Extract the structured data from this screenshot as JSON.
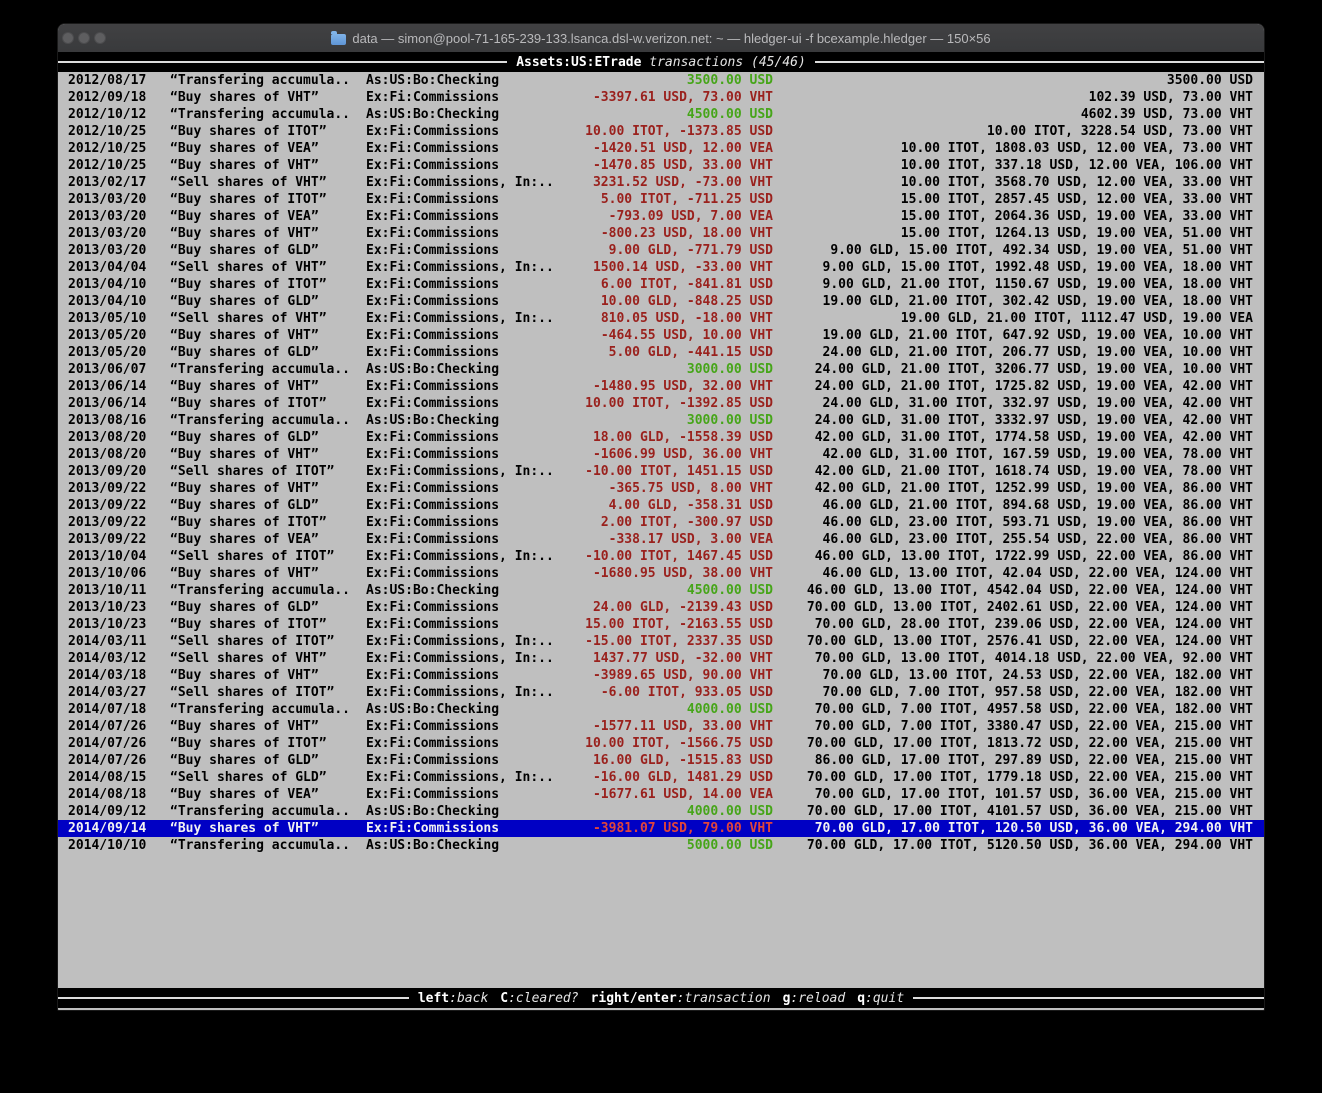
{
  "window": {
    "title": "data — simon@pool-71-165-239-133.lsanca.dsl-w.verizon.net: ~ — hledger-ui -f bcexample.hledger — 150×56",
    "traffic_lights": [
      "close",
      "minimize",
      "zoom"
    ]
  },
  "colors": {
    "terminal_bg": "#bfbfbf",
    "bar_bg": "#000000",
    "text": "#000000",
    "amount_negative": "#9a211d",
    "amount_positive": "#46a519",
    "selected_bg": "#0000c4",
    "selected_text": "#f2f2f2"
  },
  "topbar": {
    "account": "Assets:US:ETrade",
    "mode": "transactions (45/46)"
  },
  "bottombar": {
    "hints": [
      {
        "key": "left",
        "desc": ":back"
      },
      {
        "key": "C",
        "desc": ":cleared?"
      },
      {
        "key": "right/enter",
        "desc": ":transaction"
      },
      {
        "key": "g",
        "desc": ":reload"
      },
      {
        "key": "q",
        "desc": ":quit"
      }
    ]
  },
  "table": {
    "rows": [
      {
        "date": "2012/08/17",
        "desc": "“Transfering accumula..",
        "acct": "As:US:Bo:Checking",
        "change": "3500.00 USD",
        "change_color": "green",
        "balance": "3500.00 USD",
        "selected": false
      },
      {
        "date": "2012/09/18",
        "desc": "“Buy shares of VHT”",
        "acct": "Ex:Fi:Commissions",
        "change": "-3397.61 USD, 73.00 VHT",
        "change_color": "red",
        "balance": "102.39 USD, 73.00 VHT",
        "selected": false
      },
      {
        "date": "2012/10/12",
        "desc": "“Transfering accumula..",
        "acct": "As:US:Bo:Checking",
        "change": "4500.00 USD",
        "change_color": "green",
        "balance": "4602.39 USD, 73.00 VHT",
        "selected": false
      },
      {
        "date": "2012/10/25",
        "desc": "“Buy shares of ITOT”",
        "acct": "Ex:Fi:Commissions",
        "change": "10.00 ITOT, -1373.85 USD",
        "change_color": "red",
        "balance": "10.00 ITOT, 3228.54 USD, 73.00 VHT",
        "selected": false
      },
      {
        "date": "2012/10/25",
        "desc": "“Buy shares of VEA”",
        "acct": "Ex:Fi:Commissions",
        "change": "-1420.51 USD, 12.00 VEA",
        "change_color": "red",
        "balance": "10.00 ITOT, 1808.03 USD, 12.00 VEA, 73.00 VHT",
        "selected": false
      },
      {
        "date": "2012/10/25",
        "desc": "“Buy shares of VHT”",
        "acct": "Ex:Fi:Commissions",
        "change": "-1470.85 USD, 33.00 VHT",
        "change_color": "red",
        "balance": "10.00 ITOT, 337.18 USD, 12.00 VEA, 106.00 VHT",
        "selected": false
      },
      {
        "date": "2013/02/17",
        "desc": "“Sell shares of VHT”",
        "acct": "Ex:Fi:Commissions, In:..",
        "change": "3231.52 USD, -73.00 VHT",
        "change_color": "red",
        "balance": "10.00 ITOT, 3568.70 USD, 12.00 VEA, 33.00 VHT",
        "selected": false
      },
      {
        "date": "2013/03/20",
        "desc": "“Buy shares of ITOT”",
        "acct": "Ex:Fi:Commissions",
        "change": "5.00 ITOT, -711.25 USD",
        "change_color": "red",
        "balance": "15.00 ITOT, 2857.45 USD, 12.00 VEA, 33.00 VHT",
        "selected": false
      },
      {
        "date": "2013/03/20",
        "desc": "“Buy shares of VEA”",
        "acct": "Ex:Fi:Commissions",
        "change": "-793.09 USD, 7.00 VEA",
        "change_color": "red",
        "balance": "15.00 ITOT, 2064.36 USD, 19.00 VEA, 33.00 VHT",
        "selected": false
      },
      {
        "date": "2013/03/20",
        "desc": "“Buy shares of VHT”",
        "acct": "Ex:Fi:Commissions",
        "change": "-800.23 USD, 18.00 VHT",
        "change_color": "red",
        "balance": "15.00 ITOT, 1264.13 USD, 19.00 VEA, 51.00 VHT",
        "selected": false
      },
      {
        "date": "2013/03/20",
        "desc": "“Buy shares of GLD”",
        "acct": "Ex:Fi:Commissions",
        "change": "9.00 GLD, -771.79 USD",
        "change_color": "red",
        "balance": "9.00 GLD, 15.00 ITOT, 492.34 USD, 19.00 VEA, 51.00 VHT",
        "selected": false
      },
      {
        "date": "2013/04/04",
        "desc": "“Sell shares of VHT”",
        "acct": "Ex:Fi:Commissions, In:..",
        "change": "1500.14 USD, -33.00 VHT",
        "change_color": "red",
        "balance": "9.00 GLD, 15.00 ITOT, 1992.48 USD, 19.00 VEA, 18.00 VHT",
        "selected": false
      },
      {
        "date": "2013/04/10",
        "desc": "“Buy shares of ITOT”",
        "acct": "Ex:Fi:Commissions",
        "change": "6.00 ITOT, -841.81 USD",
        "change_color": "red",
        "balance": "9.00 GLD, 21.00 ITOT, 1150.67 USD, 19.00 VEA, 18.00 VHT",
        "selected": false
      },
      {
        "date": "2013/04/10",
        "desc": "“Buy shares of GLD”",
        "acct": "Ex:Fi:Commissions",
        "change": "10.00 GLD, -848.25 USD",
        "change_color": "red",
        "balance": "19.00 GLD, 21.00 ITOT, 302.42 USD, 19.00 VEA, 18.00 VHT",
        "selected": false
      },
      {
        "date": "2013/05/10",
        "desc": "“Sell shares of VHT”",
        "acct": "Ex:Fi:Commissions, In:..",
        "change": "810.05 USD, -18.00 VHT",
        "change_color": "red",
        "balance": "19.00 GLD, 21.00 ITOT, 1112.47 USD, 19.00 VEA",
        "selected": false
      },
      {
        "date": "2013/05/20",
        "desc": "“Buy shares of VHT”",
        "acct": "Ex:Fi:Commissions",
        "change": "-464.55 USD, 10.00 VHT",
        "change_color": "red",
        "balance": "19.00 GLD, 21.00 ITOT, 647.92 USD, 19.00 VEA, 10.00 VHT",
        "selected": false
      },
      {
        "date": "2013/05/20",
        "desc": "“Buy shares of GLD”",
        "acct": "Ex:Fi:Commissions",
        "change": "5.00 GLD, -441.15 USD",
        "change_color": "red",
        "balance": "24.00 GLD, 21.00 ITOT, 206.77 USD, 19.00 VEA, 10.00 VHT",
        "selected": false
      },
      {
        "date": "2013/06/07",
        "desc": "“Transfering accumula..",
        "acct": "As:US:Bo:Checking",
        "change": "3000.00 USD",
        "change_color": "green",
        "balance": "24.00 GLD, 21.00 ITOT, 3206.77 USD, 19.00 VEA, 10.00 VHT",
        "selected": false
      },
      {
        "date": "2013/06/14",
        "desc": "“Buy shares of VHT”",
        "acct": "Ex:Fi:Commissions",
        "change": "-1480.95 USD, 32.00 VHT",
        "change_color": "red",
        "balance": "24.00 GLD, 21.00 ITOT, 1725.82 USD, 19.00 VEA, 42.00 VHT",
        "selected": false
      },
      {
        "date": "2013/06/14",
        "desc": "“Buy shares of ITOT”",
        "acct": "Ex:Fi:Commissions",
        "change": "10.00 ITOT, -1392.85 USD",
        "change_color": "red",
        "balance": "24.00 GLD, 31.00 ITOT, 332.97 USD, 19.00 VEA, 42.00 VHT",
        "selected": false
      },
      {
        "date": "2013/08/16",
        "desc": "“Transfering accumula..",
        "acct": "As:US:Bo:Checking",
        "change": "3000.00 USD",
        "change_color": "green",
        "balance": "24.00 GLD, 31.00 ITOT, 3332.97 USD, 19.00 VEA, 42.00 VHT",
        "selected": false
      },
      {
        "date": "2013/08/20",
        "desc": "“Buy shares of GLD”",
        "acct": "Ex:Fi:Commissions",
        "change": "18.00 GLD, -1558.39 USD",
        "change_color": "red",
        "balance": "42.00 GLD, 31.00 ITOT, 1774.58 USD, 19.00 VEA, 42.00 VHT",
        "selected": false
      },
      {
        "date": "2013/08/20",
        "desc": "“Buy shares of VHT”",
        "acct": "Ex:Fi:Commissions",
        "change": "-1606.99 USD, 36.00 VHT",
        "change_color": "red",
        "balance": "42.00 GLD, 31.00 ITOT, 167.59 USD, 19.00 VEA, 78.00 VHT",
        "selected": false
      },
      {
        "date": "2013/09/20",
        "desc": "“Sell shares of ITOT”",
        "acct": "Ex:Fi:Commissions, In:..",
        "change": "-10.00 ITOT, 1451.15 USD",
        "change_color": "red",
        "balance": "42.00 GLD, 21.00 ITOT, 1618.74 USD, 19.00 VEA, 78.00 VHT",
        "selected": false
      },
      {
        "date": "2013/09/22",
        "desc": "“Buy shares of VHT”",
        "acct": "Ex:Fi:Commissions",
        "change": "-365.75 USD, 8.00 VHT",
        "change_color": "red",
        "balance": "42.00 GLD, 21.00 ITOT, 1252.99 USD, 19.00 VEA, 86.00 VHT",
        "selected": false
      },
      {
        "date": "2013/09/22",
        "desc": "“Buy shares of GLD”",
        "acct": "Ex:Fi:Commissions",
        "change": "4.00 GLD, -358.31 USD",
        "change_color": "red",
        "balance": "46.00 GLD, 21.00 ITOT, 894.68 USD, 19.00 VEA, 86.00 VHT",
        "selected": false
      },
      {
        "date": "2013/09/22",
        "desc": "“Buy shares of ITOT”",
        "acct": "Ex:Fi:Commissions",
        "change": "2.00 ITOT, -300.97 USD",
        "change_color": "red",
        "balance": "46.00 GLD, 23.00 ITOT, 593.71 USD, 19.00 VEA, 86.00 VHT",
        "selected": false
      },
      {
        "date": "2013/09/22",
        "desc": "“Buy shares of VEA”",
        "acct": "Ex:Fi:Commissions",
        "change": "-338.17 USD, 3.00 VEA",
        "change_color": "red",
        "balance": "46.00 GLD, 23.00 ITOT, 255.54 USD, 22.00 VEA, 86.00 VHT",
        "selected": false
      },
      {
        "date": "2013/10/04",
        "desc": "“Sell shares of ITOT”",
        "acct": "Ex:Fi:Commissions, In:..",
        "change": "-10.00 ITOT, 1467.45 USD",
        "change_color": "red",
        "balance": "46.00 GLD, 13.00 ITOT, 1722.99 USD, 22.00 VEA, 86.00 VHT",
        "selected": false
      },
      {
        "date": "2013/10/06",
        "desc": "“Buy shares of VHT”",
        "acct": "Ex:Fi:Commissions",
        "change": "-1680.95 USD, 38.00 VHT",
        "change_color": "red",
        "balance": "46.00 GLD, 13.00 ITOT, 42.04 USD, 22.00 VEA, 124.00 VHT",
        "selected": false
      },
      {
        "date": "2013/10/11",
        "desc": "“Transfering accumula..",
        "acct": "As:US:Bo:Checking",
        "change": "4500.00 USD",
        "change_color": "green",
        "balance": "46.00 GLD, 13.00 ITOT, 4542.04 USD, 22.00 VEA, 124.00 VHT",
        "selected": false
      },
      {
        "date": "2013/10/23",
        "desc": "“Buy shares of GLD”",
        "acct": "Ex:Fi:Commissions",
        "change": "24.00 GLD, -2139.43 USD",
        "change_color": "red",
        "balance": "70.00 GLD, 13.00 ITOT, 2402.61 USD, 22.00 VEA, 124.00 VHT",
        "selected": false
      },
      {
        "date": "2013/10/23",
        "desc": "“Buy shares of ITOT”",
        "acct": "Ex:Fi:Commissions",
        "change": "15.00 ITOT, -2163.55 USD",
        "change_color": "red",
        "balance": "70.00 GLD, 28.00 ITOT, 239.06 USD, 22.00 VEA, 124.00 VHT",
        "selected": false
      },
      {
        "date": "2014/03/11",
        "desc": "“Sell shares of ITOT”",
        "acct": "Ex:Fi:Commissions, In:..",
        "change": "-15.00 ITOT, 2337.35 USD",
        "change_color": "red",
        "balance": "70.00 GLD, 13.00 ITOT, 2576.41 USD, 22.00 VEA, 124.00 VHT",
        "selected": false
      },
      {
        "date": "2014/03/12",
        "desc": "“Sell shares of VHT”",
        "acct": "Ex:Fi:Commissions, In:..",
        "change": "1437.77 USD, -32.00 VHT",
        "change_color": "red",
        "balance": "70.00 GLD, 13.00 ITOT, 4014.18 USD, 22.00 VEA, 92.00 VHT",
        "selected": false
      },
      {
        "date": "2014/03/18",
        "desc": "“Buy shares of VHT”",
        "acct": "Ex:Fi:Commissions",
        "change": "-3989.65 USD, 90.00 VHT",
        "change_color": "red",
        "balance": "70.00 GLD, 13.00 ITOT, 24.53 USD, 22.00 VEA, 182.00 VHT",
        "selected": false
      },
      {
        "date": "2014/03/27",
        "desc": "“Sell shares of ITOT”",
        "acct": "Ex:Fi:Commissions, In:..",
        "change": "-6.00 ITOT, 933.05 USD",
        "change_color": "red",
        "balance": "70.00 GLD, 7.00 ITOT, 957.58 USD, 22.00 VEA, 182.00 VHT",
        "selected": false
      },
      {
        "date": "2014/07/18",
        "desc": "“Transfering accumula..",
        "acct": "As:US:Bo:Checking",
        "change": "4000.00 USD",
        "change_color": "green",
        "balance": "70.00 GLD, 7.00 ITOT, 4957.58 USD, 22.00 VEA, 182.00 VHT",
        "selected": false
      },
      {
        "date": "2014/07/26",
        "desc": "“Buy shares of VHT”",
        "acct": "Ex:Fi:Commissions",
        "change": "-1577.11 USD, 33.00 VHT",
        "change_color": "red",
        "balance": "70.00 GLD, 7.00 ITOT, 3380.47 USD, 22.00 VEA, 215.00 VHT",
        "selected": false
      },
      {
        "date": "2014/07/26",
        "desc": "“Buy shares of ITOT”",
        "acct": "Ex:Fi:Commissions",
        "change": "10.00 ITOT, -1566.75 USD",
        "change_color": "red",
        "balance": "70.00 GLD, 17.00 ITOT, 1813.72 USD, 22.00 VEA, 215.00 VHT",
        "selected": false
      },
      {
        "date": "2014/07/26",
        "desc": "“Buy shares of GLD”",
        "acct": "Ex:Fi:Commissions",
        "change": "16.00 GLD, -1515.83 USD",
        "change_color": "red",
        "balance": "86.00 GLD, 17.00 ITOT, 297.89 USD, 22.00 VEA, 215.00 VHT",
        "selected": false
      },
      {
        "date": "2014/08/15",
        "desc": "“Sell shares of GLD”",
        "acct": "Ex:Fi:Commissions, In:..",
        "change": "-16.00 GLD, 1481.29 USD",
        "change_color": "red",
        "balance": "70.00 GLD, 17.00 ITOT, 1779.18 USD, 22.00 VEA, 215.00 VHT",
        "selected": false
      },
      {
        "date": "2014/08/18",
        "desc": "“Buy shares of VEA”",
        "acct": "Ex:Fi:Commissions",
        "change": "-1677.61 USD, 14.00 VEA",
        "change_color": "red",
        "balance": "70.00 GLD, 17.00 ITOT, 101.57 USD, 36.00 VEA, 215.00 VHT",
        "selected": false
      },
      {
        "date": "2014/09/12",
        "desc": "“Transfering accumula..",
        "acct": "As:US:Bo:Checking",
        "change": "4000.00 USD",
        "change_color": "green",
        "balance": "70.00 GLD, 17.00 ITOT, 4101.57 USD, 36.00 VEA, 215.00 VHT",
        "selected": false
      },
      {
        "date": "2014/09/14",
        "desc": "“Buy shares of VHT”",
        "acct": "Ex:Fi:Commissions",
        "change": "-3981.07 USD, 79.00 VHT",
        "change_color": "red",
        "balance": "70.00 GLD, 17.00 ITOT, 120.50 USD, 36.00 VEA, 294.00 VHT",
        "selected": true
      },
      {
        "date": "2014/10/10",
        "desc": "“Transfering accumula..",
        "acct": "As:US:Bo:Checking",
        "change": "5000.00 USD",
        "change_color": "green",
        "balance": "70.00 GLD, 17.00 ITOT, 5120.50 USD, 36.00 VEA, 294.00 VHT",
        "selected": false
      }
    ]
  }
}
